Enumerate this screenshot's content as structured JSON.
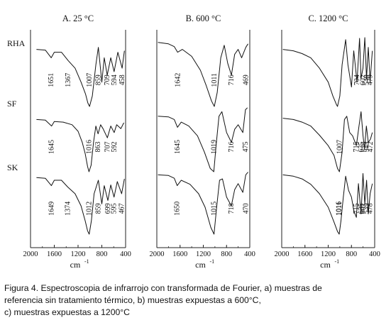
{
  "chart_data": {
    "type": "line",
    "panels": [
      {
        "title": "A. 25 °C",
        "xlabel": "cm",
        "xlabel_sup": "-1",
        "xlim": [
          2000,
          400
        ],
        "xticks": [
          "2000",
          "1600",
          "1200",
          "800",
          "400"
        ],
        "grid": false,
        "series": [
          {
            "name": "RHA",
            "x": [
              1900,
              1750,
              1651,
              1600,
              1480,
              1367,
              1250,
              1150,
              1075,
              1035,
              1007,
              960,
              900,
              859,
              800,
              760,
              709,
              650,
              594,
              530,
              458,
              420
            ],
            "y": [
              0.82,
              0.81,
              0.7,
              0.78,
              0.78,
              0.66,
              0.55,
              0.35,
              0.18,
              0.05,
              0.0,
              0.15,
              0.6,
              0.85,
              0.35,
              0.7,
              0.45,
              0.7,
              0.5,
              0.78,
              0.55,
              0.8
            ]
          },
          {
            "name": "SF",
            "x": [
              1900,
              1750,
              1645,
              1600,
              1450,
              1300,
              1200,
              1130,
              1080,
              1040,
              1016,
              980,
              940,
              900,
              863,
              820,
              780,
              707,
              650,
              592,
              550,
              480,
              430
            ],
            "y": [
              0.8,
              0.79,
              0.7,
              0.77,
              0.76,
              0.72,
              0.62,
              0.45,
              0.28,
              0.08,
              0.0,
              0.1,
              0.45,
              0.7,
              0.58,
              0.72,
              0.66,
              0.52,
              0.7,
              0.6,
              0.72,
              0.66,
              0.75
            ]
          },
          {
            "name": "SK",
            "x": [
              1900,
              1750,
              1649,
              1600,
              1480,
              1374,
              1250,
              1150,
              1080,
              1040,
              1012,
              975,
              930,
              859,
              800,
              760,
              699,
              650,
              595,
              540,
              467,
              420
            ],
            "y": [
              0.84,
              0.83,
              0.72,
              0.8,
              0.8,
              0.7,
              0.6,
              0.42,
              0.2,
              0.05,
              0.0,
              0.2,
              0.6,
              0.8,
              0.45,
              0.72,
              0.5,
              0.73,
              0.55,
              0.78,
              0.6,
              0.82
            ]
          }
        ],
        "annotations": [
          {
            "series": "RHA",
            "label": "1651"
          },
          {
            "series": "RHA",
            "label": "1367"
          },
          {
            "series": "RHA",
            "label": "1007"
          },
          {
            "series": "RHA",
            "label": "859"
          },
          {
            "series": "RHA",
            "label": "709"
          },
          {
            "series": "RHA",
            "label": "594"
          },
          {
            "series": "RHA",
            "label": "458"
          },
          {
            "series": "SF",
            "label": "1645"
          },
          {
            "series": "SF",
            "label": "1016"
          },
          {
            "series": "SF",
            "label": "863"
          },
          {
            "series": "SF",
            "label": "707"
          },
          {
            "series": "SF",
            "label": "592"
          },
          {
            "series": "SK",
            "label": "1649"
          },
          {
            "series": "SK",
            "label": "1374"
          },
          {
            "series": "SK",
            "label": "1012"
          },
          {
            "series": "SK",
            "label": "859"
          },
          {
            "series": "SK",
            "label": "699"
          },
          {
            "series": "SK",
            "label": "595"
          },
          {
            "series": "SK",
            "label": "467"
          }
        ]
      },
      {
        "title": "B. 600 °C",
        "xlabel": "cm",
        "xlabel_sup": "-1",
        "xlim": [
          2000,
          400
        ],
        "xticks": [
          "2000",
          "1600",
          "1200",
          "800",
          "400"
        ],
        "grid": false,
        "series": [
          {
            "name": "RHA",
            "x": [
              1980,
              1800,
              1700,
              1642,
              1560,
              1400,
              1250,
              1150,
              1060,
              1011,
              960,
              900,
              840,
              780,
              716,
              660,
              600,
              540,
              469,
              430
            ],
            "y": [
              0.92,
              0.9,
              0.86,
              0.78,
              0.82,
              0.72,
              0.52,
              0.3,
              0.08,
              0.0,
              0.2,
              0.7,
              0.88,
              0.62,
              0.45,
              0.75,
              0.82,
              0.7,
              0.85,
              0.9
            ]
          },
          {
            "name": "SF",
            "x": [
              1980,
              1800,
              1700,
              1645,
              1580,
              1450,
              1300,
              1180,
              1080,
              1019,
              980,
              930,
              880,
              800,
              716,
              660,
              600,
              520,
              475,
              440
            ],
            "y": [
              0.85,
              0.84,
              0.8,
              0.68,
              0.76,
              0.7,
              0.55,
              0.3,
              0.05,
              0.0,
              0.4,
              0.85,
              0.92,
              0.6,
              0.45,
              0.65,
              0.72,
              0.6,
              0.95,
              0.98
            ]
          },
          {
            "name": "SK",
            "x": [
              1980,
              1800,
              1700,
              1650,
              1580,
              1430,
              1280,
              1170,
              1070,
              1015,
              970,
              920,
              870,
              800,
              718,
              660,
              600,
              520,
              470,
              430
            ],
            "y": [
              0.88,
              0.87,
              0.83,
              0.72,
              0.8,
              0.74,
              0.6,
              0.4,
              0.1,
              0.0,
              0.4,
              0.8,
              0.82,
              0.55,
              0.42,
              0.66,
              0.75,
              0.62,
              0.88,
              0.92
            ]
          }
        ],
        "annotations": [
          {
            "series": "RHA",
            "label": "1642"
          },
          {
            "series": "RHA",
            "label": "1011"
          },
          {
            "series": "RHA",
            "label": "716"
          },
          {
            "series": "RHA",
            "label": "469"
          },
          {
            "series": "SF",
            "label": "1645"
          },
          {
            "series": "SF",
            "label": "1019"
          },
          {
            "series": "SF",
            "label": "716"
          },
          {
            "series": "SF",
            "label": "475"
          },
          {
            "series": "SK",
            "label": "1650"
          },
          {
            "series": "SK",
            "label": "1015"
          },
          {
            "series": "SK",
            "label": "718"
          },
          {
            "series": "SK",
            "label": "470"
          }
        ]
      },
      {
        "title": "C. 1200 °C",
        "xlabel": "cm",
        "xlabel_sup": "-1",
        "xlim": [
          2000,
          400
        ],
        "xticks": [
          "2000",
          "1600",
          "1200",
          "800",
          "400"
        ],
        "grid": false,
        "series": [
          {
            "name": "RHA",
            "x": [
              1980,
              1800,
              1650,
              1500,
              1350,
              1200,
              1120,
              1060,
              1040,
              1000,
              960,
              900,
              860,
              800,
              760,
              704,
              660,
              635,
              602,
              570,
              540,
              510,
              479,
              440
            ],
            "y": [
              0.82,
              0.8,
              0.76,
              0.7,
              0.55,
              0.35,
              0.15,
              0.03,
              0.0,
              0.15,
              0.6,
              0.96,
              0.6,
              0.28,
              0.8,
              0.35,
              0.98,
              0.4,
              0.55,
              0.99,
              0.4,
              0.85,
              0.35,
              0.8
            ]
          },
          {
            "name": "SF",
            "x": [
              1980,
              1800,
              1650,
              1500,
              1350,
              1200,
              1100,
              1040,
              1007,
              960,
              920,
              880,
              830,
              780,
              715,
              670,
              635,
              600,
              575,
              543,
              510,
              472,
              440
            ],
            "y": [
              0.82,
              0.8,
              0.76,
              0.7,
              0.56,
              0.4,
              0.25,
              0.05,
              0.0,
              0.3,
              0.8,
              0.85,
              0.6,
              0.55,
              0.4,
              0.7,
              0.92,
              0.55,
              0.35,
              0.7,
              0.45,
              0.5,
              0.6
            ]
          },
          {
            "name": "SK",
            "x": [
              1980,
              1800,
              1650,
              1500,
              1350,
              1200,
              1100,
              1040,
              1011,
              980,
              940,
              900,
              850,
              800,
              760,
              715,
              680,
              635,
              601,
              570,
              539,
              510,
              478,
              440
            ],
            "y": [
              0.88,
              0.86,
              0.82,
              0.74,
              0.6,
              0.4,
              0.18,
              0.04,
              0.0,
              0.2,
              0.55,
              0.86,
              0.65,
              0.55,
              0.35,
              0.25,
              0.75,
              0.3,
              0.9,
              0.45,
              0.8,
              0.3,
              0.6,
              0.75
            ]
          }
        ],
        "annotations": [
          {
            "series": "RHA",
            "label": "704"
          },
          {
            "series": "RHA",
            "label": "602"
          },
          {
            "series": "RHA",
            "label": "540"
          },
          {
            "series": "RHA",
            "label": "479"
          },
          {
            "series": "SF",
            "label": "1007"
          },
          {
            "series": "SF",
            "label": "635"
          },
          {
            "series": "SF",
            "label": "715"
          },
          {
            "series": "SF",
            "label": "575"
          },
          {
            "series": "SF",
            "label": "543"
          },
          {
            "series": "SF",
            "label": "472"
          },
          {
            "series": "SK",
            "label": "1016"
          },
          {
            "series": "SK",
            "label": "1011"
          },
          {
            "series": "SK",
            "label": "601"
          },
          {
            "series": "SK",
            "label": "715"
          },
          {
            "series": "SK",
            "label": "635"
          },
          {
            "series": "SK",
            "label": "539"
          },
          {
            "series": "SK",
            "label": "478"
          }
        ]
      }
    ],
    "row_labels": [
      "RHA",
      "SF",
      "SK"
    ]
  },
  "caption": {
    "line1": "Figura 4. Espectroscopia de infrarrojo con transformada de Fourier, a) muestras de",
    "line2": "referencia sin tratamiento térmico, b) muestras expuestas a 600°C,",
    "line3": "c) muestras expuestas a 1200°C"
  }
}
